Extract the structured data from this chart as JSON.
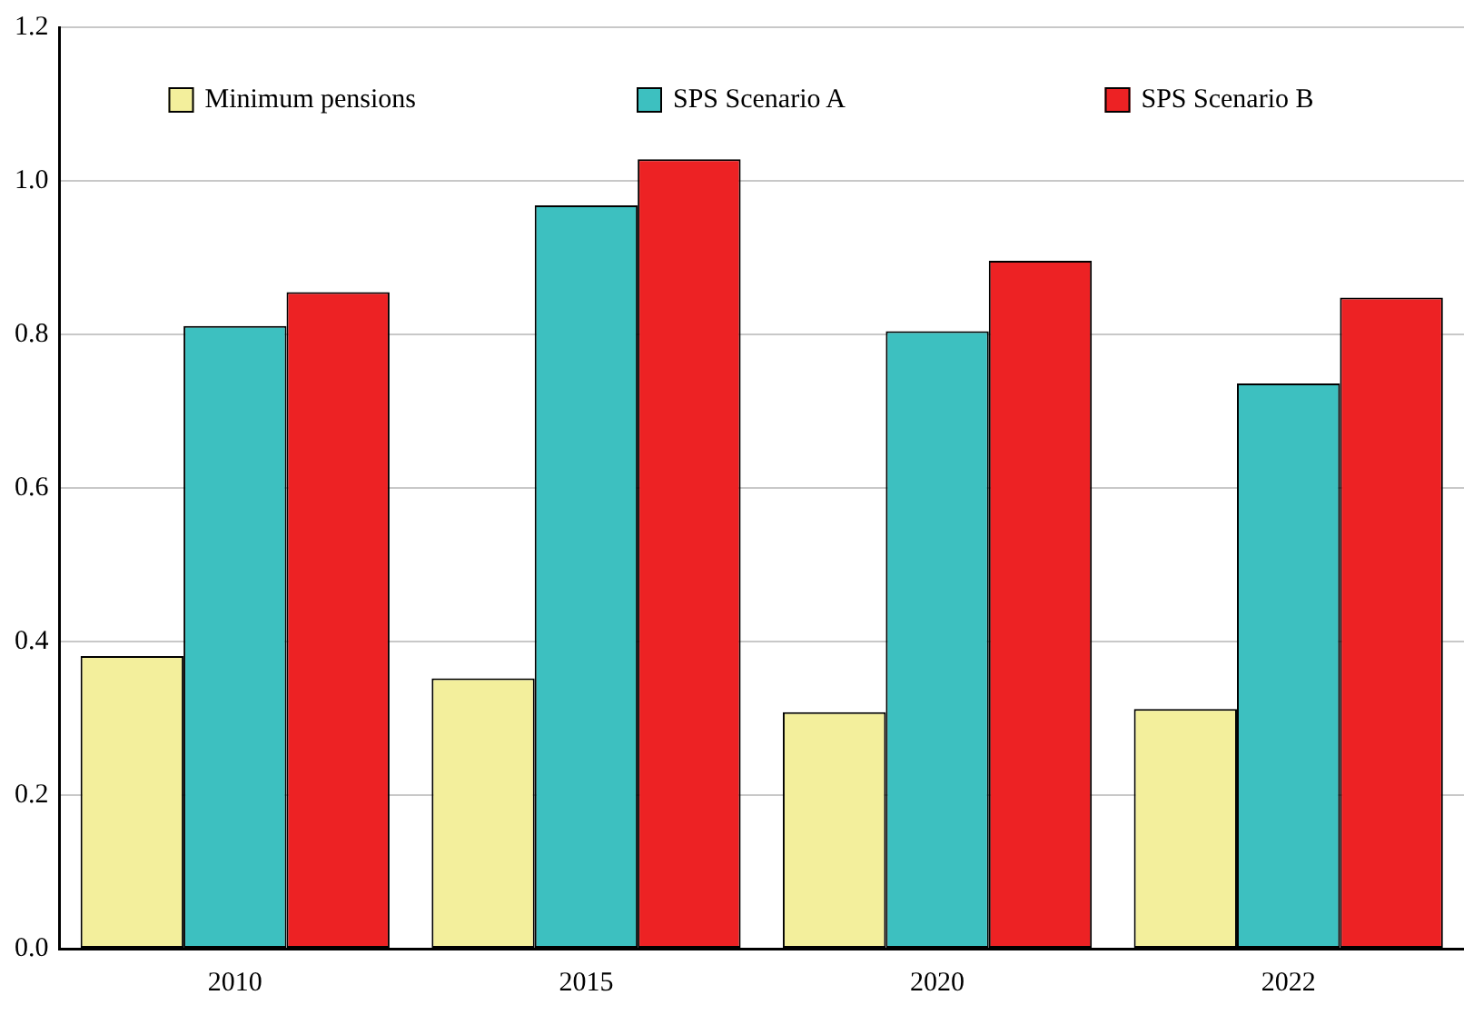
{
  "chart_data": {
    "type": "bar",
    "categories": [
      "2010",
      "2015",
      "2020",
      "2022"
    ],
    "series": [
      {
        "name": "Minimum pensions",
        "color": "#f3ef9c",
        "values": [
          0.381,
          0.352,
          0.308,
          0.312
        ]
      },
      {
        "name": "SPS Scenario A",
        "color": "#3dc0c0",
        "values": [
          0.811,
          0.968,
          0.804,
          0.736
        ]
      },
      {
        "name": "SPS Scenario B",
        "color": "#ed2224",
        "values": [
          0.855,
          1.028,
          0.896,
          0.848
        ]
      }
    ],
    "ylim": [
      0,
      1.2
    ],
    "yticks": [
      {
        "value": 0,
        "label": "0.0"
      },
      0.2,
      0.4,
      0.6,
      0.8,
      {
        "value": 1,
        "label": "1.0"
      },
      {
        "value": 1.2,
        "label": "1.2"
      }
    ],
    "grid": "y",
    "legend": "top"
  }
}
